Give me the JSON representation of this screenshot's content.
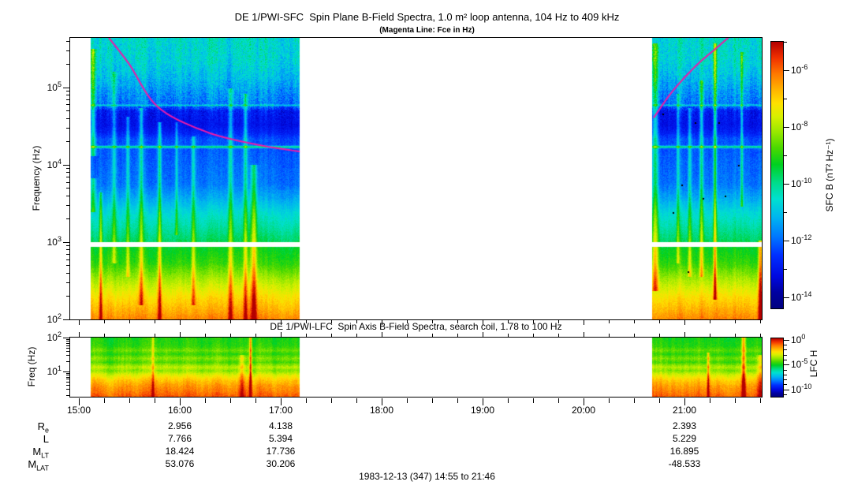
{
  "header": {
    "title": "DE 1/PWI-SFC  Spin Plane B-Field Spectra, 1.0 m² loop antenna, 104 Hz to 409 kHz",
    "subtitle": "(Magenta Line: Fce in Hz)"
  },
  "panels": {
    "sfc": {
      "ylabel": "Frequency (Hz)",
      "colorbar_label": "SFC B (nT² Hz⁻¹)"
    },
    "lfc": {
      "title": "DE 1/PWI-LFC  Spin Axis B-Field Spectra, search coil, 1.78 to 100 Hz",
      "ylabel": "Freq (Hz)",
      "colorbar_label": "LFC H"
    }
  },
  "footer": {
    "caption": "1983-12-13 (347) 14:55 to 21:46"
  },
  "ephemeris": {
    "row_labels": [
      {
        "main": "R",
        "sub": "e"
      },
      {
        "main": "L",
        "sub": ""
      },
      {
        "main": "M",
        "sub": "LT"
      },
      {
        "main": "M",
        "sub": "LAT"
      }
    ],
    "columns": [
      {
        "t": 960,
        "time_label": "16:00",
        "values": [
          "2.956",
          "7.766",
          "18.424",
          "53.076"
        ]
      },
      {
        "t": 1020,
        "time_label": "17:00",
        "values": [
          "4.138",
          "5.394",
          "17.736",
          "30.206"
        ]
      },
      {
        "t": 1260,
        "time_label": "21:00",
        "values": [
          "2.393",
          "5.229",
          "16.895",
          "-48.533"
        ]
      }
    ]
  },
  "chart_data": [
    {
      "type": "heatmap",
      "id": "sfc",
      "title": "DE 1/PWI-SFC  Spin Plane B-Field Spectra, 1.0 m² loop antenna, 104 Hz to 409 kHz",
      "subtitle": "(Magenta Line: Fce in Hz)",
      "ylabel": "Frequency (Hz)",
      "x_time_range": [
        "14:55",
        "21:46"
      ],
      "t_min": 895,
      "t_max": 1306,
      "x_major_ticks": [
        {
          "t": 900,
          "label": "15:00"
        },
        {
          "t": 960,
          "label": "16:00"
        },
        {
          "t": 1020,
          "label": "17:00"
        },
        {
          "t": 1080,
          "label": "18:00"
        },
        {
          "t": 1140,
          "label": "19:00"
        },
        {
          "t": 1200,
          "label": "20:00"
        },
        {
          "t": 1260,
          "label": "21:00"
        }
      ],
      "x_minor_step_min": 15,
      "y_scale": "log",
      "f_min": 100,
      "f_max": 435000,
      "y_tick_exponents": [
        5,
        4,
        3,
        2
      ],
      "colorbar": {
        "label": "SFC B (nT² Hz⁻¹)",
        "scale": "log",
        "tick_exponents": [
          -6,
          -8,
          -10,
          -12,
          -14
        ],
        "e_max": -5.0,
        "e_min": -14.4
      },
      "data_blocks": [
        {
          "t0": 907,
          "t1": 1031
        },
        {
          "t0": 1241,
          "t1": 1306
        }
      ],
      "fce_line": {
        "color": "#ee1aa8",
        "segments": [
          [
            [
              918,
              435000
            ],
            [
              930,
              200000
            ],
            [
              947,
              56000
            ],
            [
              975,
              27000
            ],
            [
              1004,
              18500
            ],
            [
              1031,
              14800
            ]
          ],
          [
            [
              1242,
              41000
            ],
            [
              1253,
              89000
            ],
            [
              1267,
              190000
            ],
            [
              1279,
              320000
            ],
            [
              1286,
              435000
            ]
          ]
        ]
      },
      "render": {
        "seed": 42,
        "gap": [
          870,
          1000
        ],
        "profile": [
          [
            0,
            0.41
          ],
          [
            0.08,
            0.4
          ],
          [
            0.14,
            0.36
          ],
          [
            0.2,
            0.3
          ],
          [
            0.24,
            0.27
          ],
          [
            0.26,
            0.16
          ],
          [
            0.31,
            0.14
          ],
          [
            0.335,
            0.17
          ],
          [
            0.36,
            0.23
          ],
          [
            0.44,
            0.25
          ],
          [
            0.52,
            0.27
          ],
          [
            0.57,
            0.33
          ],
          [
            0.62,
            0.4
          ],
          [
            0.68,
            0.46
          ],
          [
            0.72,
            0.5
          ],
          [
            0.745,
            0.54
          ],
          [
            0.8,
            0.58
          ],
          [
            0.86,
            0.68
          ],
          [
            0.92,
            0.77
          ],
          [
            0.97,
            0.83
          ],
          [
            1,
            0.87
          ]
        ],
        "col_noise": [
          [
            0,
            0.1
          ],
          [
            0.25,
            0.1
          ],
          [
            0.3,
            0.05
          ],
          [
            1,
            0.05
          ]
        ],
        "pix_noise": [
          [
            0,
            0.06
          ],
          [
            0.25,
            0.06
          ],
          [
            0.3,
            0.03
          ],
          [
            0.55,
            0.03
          ],
          [
            0.6,
            0.025
          ],
          [
            1,
            0.025
          ]
        ],
        "clouds": [
          {
            "t0": 910,
            "t1": 1031,
            "count": 70,
            "y_max": 0.24,
            "rt_min": 2,
            "rt_max": 11,
            "s_min": 0.08,
            "s_max": 0.4,
            "seed": 11
          },
          {
            "t0": 1243,
            "t1": 1306,
            "count": 26,
            "y_max": 0.22,
            "rt_min": 2,
            "rt_max": 9,
            "s_min": 0.08,
            "s_max": 0.34,
            "seed": 21
          }
        ],
        "features": [
          {
            "type": "hline",
            "yf": 0.386,
            "s": 0.26,
            "sig": 1.4
          },
          {
            "type": "hline",
            "yf": 0.238,
            "s": 0.14,
            "sig": 1.0
          },
          {
            "type": "vstreak",
            "t": 908.5,
            "w": 1.6,
            "s": 0.26,
            "y0": 0.04,
            "y1": 0.42
          },
          {
            "type": "vstreak",
            "t": 908.5,
            "w": 1.6,
            "s": 0.2,
            "y0": 0.5,
            "y1": 0.62
          },
          {
            "type": "vstreak",
            "t": 913,
            "w": 0.9,
            "s": 0.2,
            "y0": 0.55,
            "y1": 1
          },
          {
            "type": "vstreak",
            "t": 921,
            "w": 1.2,
            "s": 0.18,
            "y0": 0.12,
            "y1": 0.8
          },
          {
            "type": "vstreak",
            "t": 929,
            "w": 1.0,
            "s": 0.16,
            "y0": 0.28,
            "y1": 0.85
          },
          {
            "type": "vstreak",
            "t": 937,
            "w": 1.2,
            "s": 0.2,
            "y0": 0.25,
            "y1": 0.95
          },
          {
            "type": "vstreak",
            "t": 948,
            "w": 1.0,
            "s": 0.22,
            "y0": 0.3,
            "y1": 1
          },
          {
            "type": "vstreak",
            "t": 958,
            "w": 0.8,
            "s": 0.15,
            "y0": 0.3,
            "y1": 0.7
          },
          {
            "type": "vstreak",
            "t": 968,
            "w": 1.1,
            "s": 0.17,
            "y0": 0.35,
            "y1": 0.95
          },
          {
            "type": "vstreak",
            "t": 990,
            "w": 1.4,
            "s": 0.22,
            "y0": 0.18,
            "y1": 1
          },
          {
            "type": "vstreak",
            "t": 999,
            "w": 1.2,
            "s": 0.2,
            "y0": 0.2,
            "y1": 1
          },
          {
            "type": "vstreak",
            "t": 1004,
            "w": 1.8,
            "s": 0.24,
            "y0": 0.45,
            "y1": 1
          },
          {
            "type": "blob",
            "t": 995,
            "yc": 0.93,
            "rt": 16,
            "ry": 0.1,
            "s": 0.12
          },
          {
            "type": "blob",
            "t": 1008,
            "yc": 0.9,
            "rt": 8,
            "ry": 0.12,
            "s": 0.1
          },
          {
            "type": "vstreak",
            "t": 1242.5,
            "w": 1.8,
            "s": 0.26,
            "y0": 0.02,
            "y1": 0.9
          },
          {
            "type": "vstreak",
            "t": 1256,
            "w": 0.9,
            "s": 0.16,
            "y0": 0.2,
            "y1": 0.8
          },
          {
            "type": "vstreak",
            "t": 1263,
            "w": 1.0,
            "s": 0.18,
            "y0": 0.25,
            "y1": 0.85
          },
          {
            "type": "vstreak",
            "t": 1270,
            "w": 1.1,
            "s": 0.2,
            "y0": 0.15,
            "y1": 0.85
          },
          {
            "type": "vstreak",
            "t": 1278,
            "w": 0.9,
            "s": 0.3,
            "y0": 0.02,
            "y1": 0.93
          },
          {
            "type": "vstreak",
            "t": 1294,
            "w": 0.8,
            "s": 0.22,
            "y0": 0.05,
            "y1": 0.6
          },
          {
            "type": "blob",
            "t": 1252,
            "yc": 0.8,
            "rt": 4,
            "ry": 0.13,
            "s": 0.32
          },
          {
            "type": "blob",
            "t": 1252,
            "yc": 0.95,
            "rt": 5,
            "ry": 0.1,
            "s": 0.2
          },
          {
            "type": "blob",
            "t": 1297,
            "yc": 0.72,
            "rt": 5,
            "ry": 0.12,
            "s": 0.34
          },
          {
            "type": "blob",
            "t": 1297,
            "yc": 0.9,
            "rt": 6,
            "ry": 0.12,
            "s": 0.22
          },
          {
            "type": "vstreak",
            "t": 1305,
            "w": 1.2,
            "s": 0.28,
            "y0": 0.72,
            "y1": 1
          }
        ],
        "dots": [
          [
            1247,
            0.27
          ],
          [
            1258,
            0.52
          ],
          [
            1262,
            0.83
          ],
          [
            1266,
            0.3
          ],
          [
            1271,
            0.57
          ],
          [
            1280,
            0.3
          ],
          [
            1284,
            0.56
          ],
          [
            1292,
            0.45
          ],
          [
            1253,
            0.62
          ]
        ]
      }
    },
    {
      "type": "heatmap",
      "id": "lfc",
      "title": "DE 1/PWI-LFC  Spin Axis B-Field Spectra, search coil, 1.78 to 100 Hz",
      "ylabel": "Freq (Hz)",
      "t_min": 895,
      "t_max": 1306,
      "y_scale": "log",
      "f_min": 1.78,
      "f_max": 100,
      "y_tick_exponents": [
        2,
        1
      ],
      "colorbar": {
        "label": "LFC H",
        "scale": "log",
        "tick_exponents": [
          0,
          -5,
          -10
        ],
        "e_max": 0.3,
        "e_min": -11.5
      },
      "data_blocks": [
        {
          "t0": 907,
          "t1": 1031
        },
        {
          "t0": 1241,
          "t1": 1306
        }
      ],
      "render": {
        "seed": 7,
        "profile": [
          [
            0,
            0.56
          ],
          [
            0.15,
            0.58
          ],
          [
            0.22,
            0.63
          ],
          [
            0.28,
            0.58
          ],
          [
            0.35,
            0.65
          ],
          [
            0.42,
            0.6
          ],
          [
            0.5,
            0.7
          ],
          [
            0.56,
            0.65
          ],
          [
            0.63,
            0.73
          ],
          [
            0.72,
            0.8
          ],
          [
            0.82,
            0.85
          ],
          [
            0.92,
            0.88
          ],
          [
            1,
            0.91
          ]
        ],
        "col_noise": [
          [
            0,
            0.055
          ],
          [
            1,
            0.055
          ]
        ],
        "pix_noise": [
          [
            0,
            0.025
          ],
          [
            1,
            0.025
          ]
        ],
        "clouds": [],
        "features": [
          {
            "type": "vstreak",
            "t": 944,
            "w": 0.8,
            "s": 0.16,
            "y0": 0,
            "y1": 1
          },
          {
            "type": "vstreak",
            "t": 997,
            "w": 1.5,
            "s": 0.12,
            "y0": 0.3,
            "y1": 1
          },
          {
            "type": "vstreak",
            "t": 1002,
            "w": 0.7,
            "s": 0.3,
            "y0": 0,
            "y1": 1
          },
          {
            "type": "vstreak",
            "t": 1274,
            "w": 0.7,
            "s": 0.2,
            "y0": 0.25,
            "y1": 1
          },
          {
            "type": "vstreak",
            "t": 1295,
            "w": 1.2,
            "s": 0.28,
            "y0": 0,
            "y1": 1
          },
          {
            "type": "vstreak",
            "t": 1305,
            "w": 1.5,
            "s": 0.14,
            "y0": 0.3,
            "y1": 1
          }
        ],
        "dots": []
      }
    }
  ]
}
